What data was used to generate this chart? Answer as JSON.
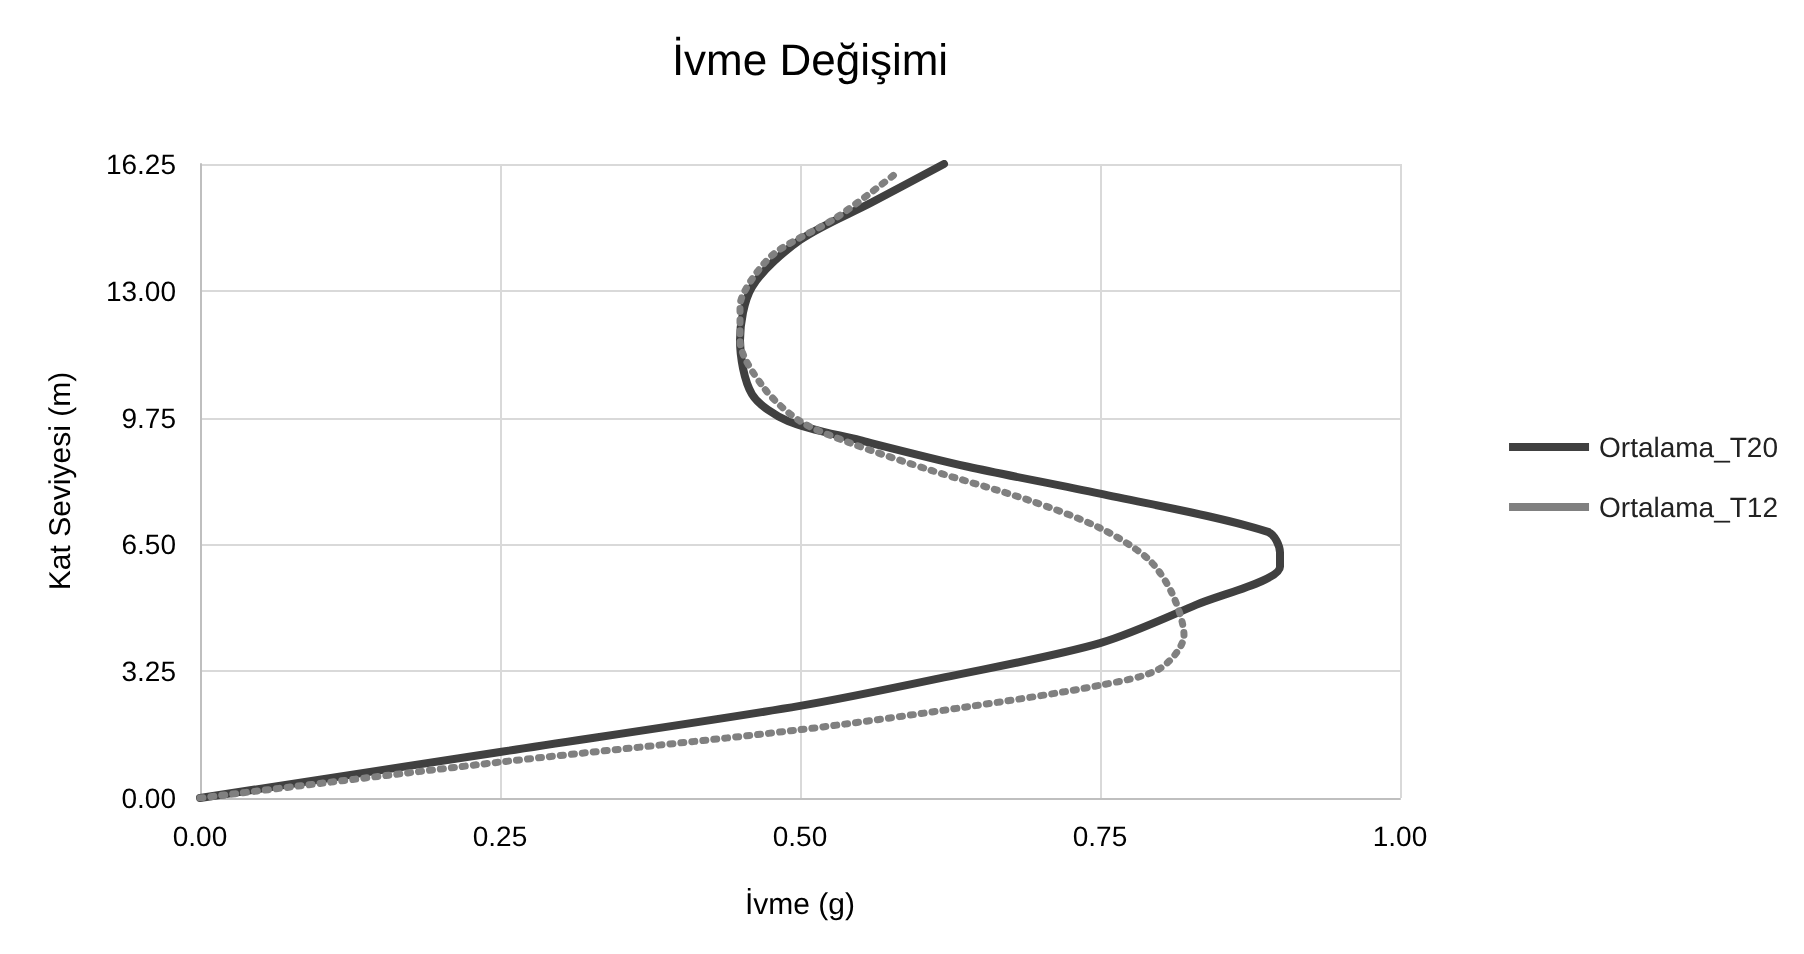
{
  "chart_data": {
    "type": "line",
    "title": "İvme Değişimi",
    "xlabel": "İvme (g)",
    "ylabel": "Kat Seviyesi (m)",
    "xlim": [
      0,
      1
    ],
    "xticks": [
      {
        "value": 0,
        "label": "0.00"
      },
      {
        "value": 0.25,
        "label": "0.25"
      },
      {
        "value": 0.5,
        "label": "0.50"
      },
      {
        "value": 0.75,
        "label": "0.75"
      },
      {
        "value": 1,
        "label": "1.00"
      }
    ],
    "ylim": [
      0,
      16.25
    ],
    "yticks": [
      {
        "value": 0,
        "label": "0.00"
      },
      {
        "value": 3.25,
        "label": "3.25"
      },
      {
        "value": 6.5,
        "label": "6.50"
      },
      {
        "value": 9.75,
        "label": "9.75"
      },
      {
        "value": 13,
        "label": "13.00"
      },
      {
        "value": 16.25,
        "label": "16.25"
      }
    ],
    "grid": true,
    "legend": "right",
    "marker": "none",
    "series": [
      {
        "name": "Ortalama_T20",
        "color": "#404040",
        "line_style": "solid",
        "x": [
          0,
          0.25,
          0.5,
          0.62,
          0.75,
          0.83,
          0.9,
          0.9,
          0.89,
          0.75,
          0.64,
          0.55,
          0.49,
          0.46,
          0.45,
          0.46,
          0.5,
          0.56,
          0.62
        ],
        "values": [
          0,
          1.18,
          2.36,
          3.09,
          3.97,
          4.95,
          5.93,
          6.29,
          6.82,
          7.8,
          8.49,
          9.17,
          9.66,
          10.35,
          11.73,
          13.1,
          14.3,
          15.27,
          16.25
        ]
      },
      {
        "name": "Ortalama_T12",
        "color": "#808080",
        "line_style": "dotted",
        "x": [
          0,
          0.25,
          0.5,
          0.64,
          0.75,
          0.8,
          0.82,
          0.81,
          0.79,
          0.75,
          0.69,
          0.61,
          0.54,
          0.5,
          0.47,
          0.45,
          0.45,
          0.46,
          0.48,
          0.53,
          0.58
        ],
        "values": [
          0,
          0.92,
          1.75,
          2.34,
          2.89,
          3.32,
          4.17,
          5.25,
          6.13,
          6.92,
          7.64,
          8.39,
          9.12,
          9.66,
          10.51,
          11.73,
          12.61,
          13.3,
          13.99,
          14.87,
          16.01
        ]
      }
    ]
  }
}
